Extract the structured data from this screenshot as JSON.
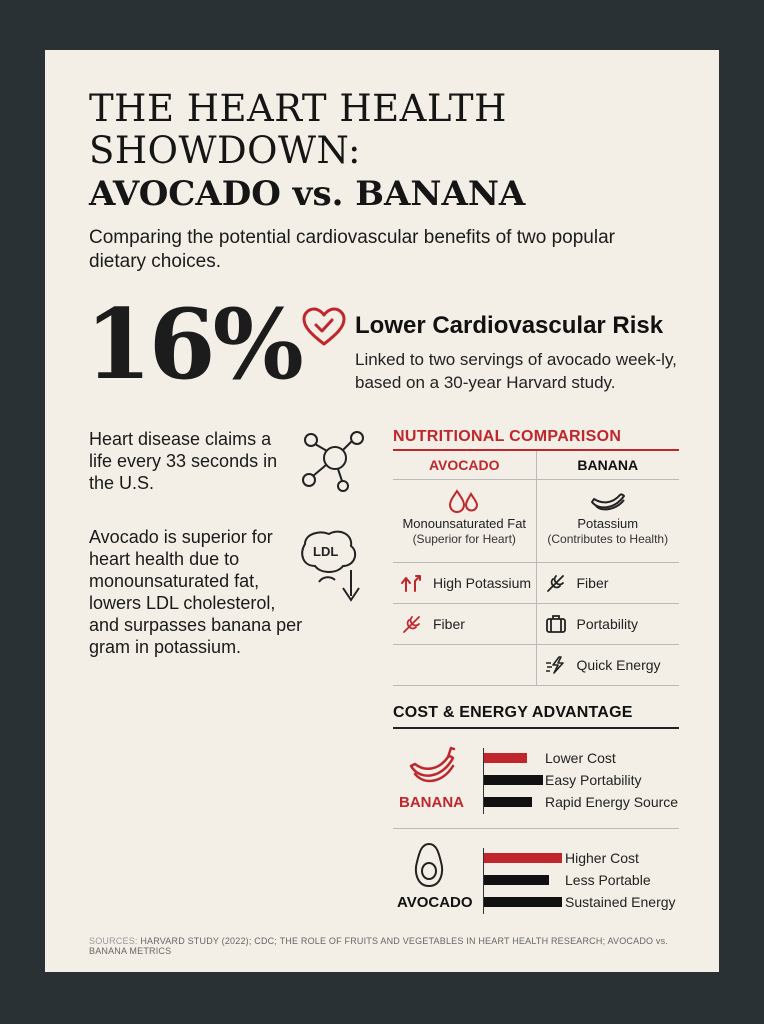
{
  "title": {
    "line1": "THE HEART HEALTH",
    "line2": "SHOWDOWN:",
    "line3": "AVOCADO vs. BANANA"
  },
  "subtitle": "Comparing the potential cardiovascular benefits of two popular dietary choices.",
  "stat": {
    "value": "16%",
    "headline": "Lower Cardiovascular Risk",
    "description": "Linked to two servings of avocado week-ly, based on a 30-year Harvard study."
  },
  "facts": [
    "Heart disease claims a life every 33 seconds in the U.S.",
    "Avocado is superior for heart health due to monounsaturated fat, lowers LDL cholesterol, and surpasses banana per gram in potassium."
  ],
  "ldl_label": "LDL",
  "nutrition": {
    "title": "NUTRITIONAL COMPARISON",
    "avocado_header": "AVOCADO",
    "banana_header": "BANANA",
    "avocado_main": {
      "label": "Monounsaturated Fat",
      "sub": "(Superior for Heart)"
    },
    "banana_main": {
      "label": "Potassium",
      "sub": "(Contributes to Health)"
    },
    "avocado_items": [
      {
        "icon": "potassium-arrows-icon",
        "label": "High Potassium"
      },
      {
        "icon": "fiber-wheat-icon",
        "label": "Fiber"
      }
    ],
    "banana_items": [
      {
        "icon": "fiber-wheat-icon",
        "label": "Fiber"
      },
      {
        "icon": "briefcase-icon",
        "label": "Portability"
      },
      {
        "icon": "lightning-icon",
        "label": "Quick Energy"
      }
    ]
  },
  "cost_energy": {
    "title": "COST & ENERGY ADVANTAGE",
    "banana_label": "BANANA",
    "avocado_label": "AVOCADO",
    "banana_bars": [
      {
        "label": "Lower Cost",
        "value": 0.55,
        "color": "#c0262c"
      },
      {
        "label": "Easy Portability",
        "value": 0.75,
        "color": "#111111"
      },
      {
        "label": "Rapid Energy Source",
        "value": 0.62,
        "color": "#111111"
      }
    ],
    "avocado_bars": [
      {
        "label": "Higher Cost",
        "value": 1.0,
        "color": "#c0262c"
      },
      {
        "label": "Less Portable",
        "value": 0.83,
        "color": "#111111"
      },
      {
        "label": "Sustained Energy",
        "value": 1.0,
        "color": "#111111"
      }
    ]
  },
  "sources": {
    "prefix": "SOURCES:",
    "text": "HARVARD STUDY (2022); CDC; THE ROLE OF FRUITS AND VEGETABLES IN HEART HEALTH RESEARCH; AVOCADO vs. BANANA METRICS"
  },
  "colors": {
    "accent": "#c0262c",
    "frame": "#2a3135",
    "paper": "#f3efe6"
  }
}
